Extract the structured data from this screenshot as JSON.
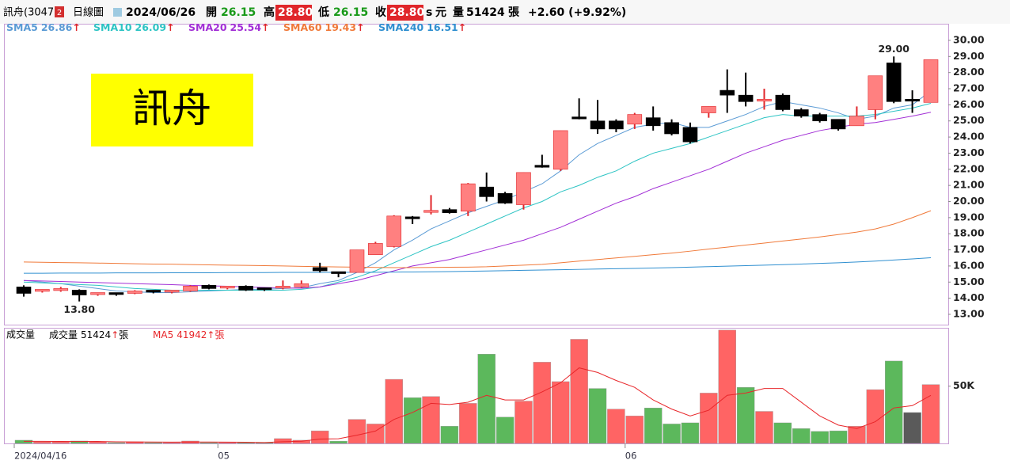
{
  "header": {
    "name": "訊舟(3047)",
    "badge": "2",
    "chart_kind": "日線圖",
    "date": "2024/06/26",
    "open_label": "開",
    "open": "26.15",
    "high_label": "高",
    "high": "28.80",
    "low_label": "低",
    "low": "26.15",
    "close_label": "收",
    "close": "28.80",
    "s": "s",
    "currency": "元",
    "volume_label": "量",
    "volume": "51424",
    "volume_unit": "張",
    "change": "+2.60 (+9.92%)"
  },
  "logo": "訊舟",
  "chart_data": [
    {
      "type": "candlestick",
      "open": [
        14.7,
        14.4,
        14.45,
        14.5,
        14.2,
        14.3,
        14.3,
        14.45,
        14.35,
        14.45,
        14.8,
        14.6,
        14.75,
        14.6,
        14.6,
        14.7,
        15.9,
        15.6,
        15.6,
        16.7,
        17.2,
        19.0,
        19.3,
        19.5,
        19.4,
        20.9,
        20.5,
        19.8,
        22.2,
        22.0,
        25.2,
        25.0,
        25.0,
        24.8,
        25.2,
        24.9,
        24.6,
        25.5,
        26.9,
        26.6,
        26.3,
        26.6,
        25.7,
        25.4,
        25.1,
        24.7,
        25.7,
        28.6,
        26.3,
        26.15
      ],
      "high": [
        14.8,
        14.55,
        14.7,
        14.55,
        14.35,
        14.35,
        14.5,
        14.5,
        14.5,
        14.8,
        14.85,
        14.75,
        14.8,
        14.65,
        15.1,
        15.1,
        16.2,
        15.65,
        17.0,
        17.5,
        19.15,
        19.1,
        20.4,
        19.6,
        21.15,
        21.8,
        20.6,
        21.8,
        22.9,
        24.4,
        26.4,
        26.3,
        25.1,
        25.5,
        25.9,
        25.1,
        24.9,
        25.9,
        28.2,
        28.0,
        27.0,
        26.7,
        25.8,
        25.5,
        25.1,
        25.9,
        27.8,
        29.0,
        26.9,
        28.8
      ],
      "low": [
        14.1,
        14.35,
        14.4,
        13.8,
        14.15,
        14.15,
        14.25,
        14.3,
        14.3,
        14.4,
        14.55,
        14.55,
        14.45,
        14.45,
        14.55,
        14.65,
        15.6,
        15.3,
        15.6,
        16.7,
        17.15,
        18.6,
        19.2,
        19.25,
        19.1,
        20.0,
        19.85,
        19.5,
        22.1,
        21.9,
        25.1,
        24.2,
        24.3,
        24.5,
        24.4,
        24.1,
        23.6,
        25.2,
        25.5,
        25.9,
        25.7,
        25.6,
        25.2,
        24.9,
        24.4,
        24.7,
        25.1,
        26.1,
        25.5,
        26.15
      ],
      "close": [
        14.3,
        14.5,
        14.55,
        14.2,
        14.3,
        14.2,
        14.45,
        14.35,
        14.45,
        14.75,
        14.6,
        14.7,
        14.5,
        14.5,
        14.7,
        14.9,
        15.7,
        15.5,
        17.0,
        17.4,
        19.1,
        18.95,
        19.4,
        19.3,
        21.1,
        20.3,
        19.9,
        21.8,
        22.15,
        24.4,
        25.15,
        24.5,
        24.5,
        25.4,
        24.7,
        24.2,
        23.7,
        25.9,
        26.6,
        26.2,
        26.3,
        25.7,
        25.3,
        25.0,
        24.5,
        25.3,
        27.8,
        26.2,
        26.2,
        28.8
      ],
      "up_color": "#ff8080",
      "up_edge": "#e0262a",
      "down_color": "#000000",
      "lines": [
        {
          "name": "SMA5",
          "color": "#5b9bd5",
          "value_label": "26.86",
          "arrow": "↑",
          "values": [
            15.1,
            15.0,
            14.9,
            14.75,
            14.6,
            14.45,
            14.4,
            14.35,
            14.35,
            14.4,
            14.45,
            14.5,
            14.55,
            14.55,
            14.6,
            14.65,
            14.9,
            15.1,
            15.6,
            16.2,
            17.0,
            17.6,
            18.3,
            18.8,
            19.3,
            19.7,
            20.1,
            20.6,
            21.1,
            21.9,
            22.9,
            23.6,
            24.1,
            24.6,
            24.8,
            24.9,
            24.6,
            24.6,
            25.0,
            25.4,
            25.9,
            26.2,
            26.0,
            25.8,
            25.5,
            25.1,
            25.3,
            25.8,
            26.0,
            26.86
          ]
        },
        {
          "name": "SMA10",
          "color": "#2ec4c4",
          "value_label": "26.09",
          "arrow": "↑",
          "values": [
            15.0,
            14.95,
            14.9,
            14.85,
            14.8,
            14.7,
            14.6,
            14.55,
            14.5,
            14.5,
            14.5,
            14.5,
            14.5,
            14.5,
            14.5,
            14.55,
            14.7,
            15.0,
            15.3,
            15.7,
            16.2,
            16.7,
            17.2,
            17.6,
            18.1,
            18.6,
            19.1,
            19.6,
            20.0,
            20.6,
            21.0,
            21.5,
            21.9,
            22.5,
            23.0,
            23.3,
            23.6,
            24.0,
            24.4,
            24.8,
            25.2,
            25.4,
            25.3,
            25.3,
            25.3,
            25.3,
            25.4,
            25.6,
            25.8,
            26.09
          ]
        },
        {
          "name": "SMA20",
          "color": "#a22fd6",
          "value_label": "25.54",
          "arrow": "↑",
          "values": [
            15.1,
            15.07,
            15.04,
            15.0,
            14.97,
            14.94,
            14.9,
            14.87,
            14.84,
            14.8,
            14.77,
            14.74,
            14.7,
            14.67,
            14.64,
            14.62,
            14.7,
            14.9,
            15.1,
            15.4,
            15.7,
            16.0,
            16.2,
            16.4,
            16.7,
            17.0,
            17.3,
            17.6,
            18.0,
            18.4,
            18.9,
            19.4,
            19.9,
            20.3,
            20.8,
            21.2,
            21.6,
            22.0,
            22.5,
            23.0,
            23.4,
            23.8,
            24.1,
            24.4,
            24.6,
            24.8,
            24.9,
            25.1,
            25.3,
            25.54
          ]
        },
        {
          "name": "SMA60",
          "color": "#f07a3a",
          "value_label": "19.43",
          "arrow": "↑",
          "values": [
            16.25,
            16.23,
            16.21,
            16.2,
            16.18,
            16.16,
            16.14,
            16.12,
            16.11,
            16.09,
            16.07,
            16.05,
            16.04,
            16.02,
            16.0,
            15.98,
            15.96,
            15.94,
            15.93,
            15.91,
            15.9,
            15.9,
            15.91,
            15.92,
            15.93,
            15.95,
            16.0,
            16.05,
            16.1,
            16.2,
            16.3,
            16.4,
            16.5,
            16.6,
            16.7,
            16.8,
            16.92,
            17.05,
            17.17,
            17.3,
            17.42,
            17.55,
            17.67,
            17.8,
            17.95,
            18.1,
            18.3,
            18.6,
            19.0,
            19.43
          ]
        },
        {
          "name": "SMA240",
          "color": "#2f8fd0",
          "value_label": "16.51",
          "arrow": "↑",
          "values": [
            15.55,
            15.55,
            15.56,
            15.56,
            15.56,
            15.57,
            15.57,
            15.57,
            15.58,
            15.58,
            15.58,
            15.59,
            15.59,
            15.59,
            15.6,
            15.6,
            15.6,
            15.61,
            15.61,
            15.61,
            15.62,
            15.63,
            15.64,
            15.65,
            15.67,
            15.69,
            15.71,
            15.73,
            15.75,
            15.77,
            15.79,
            15.81,
            15.83,
            15.85,
            15.87,
            15.9,
            15.93,
            15.96,
            15.99,
            16.02,
            16.05,
            16.08,
            16.12,
            16.16,
            16.2,
            16.25,
            16.3,
            16.37,
            16.44,
            16.51
          ]
        }
      ],
      "annotations": [
        {
          "label": "29.00",
          "value": 29.0
        },
        {
          "label": "13.80",
          "value": 13.8
        }
      ],
      "ylim": [
        12.36,
        31.03
      ],
      "yticks": [
        {
          "value": 13,
          "label": "13.00"
        },
        {
          "value": 14,
          "label": "14.00"
        },
        {
          "value": 15,
          "label": "15.00"
        },
        {
          "value": 16,
          "label": "16.00"
        },
        {
          "value": 17,
          "label": "17.00"
        },
        {
          "value": 18,
          "label": "18.00"
        },
        {
          "value": 19,
          "label": "19.00"
        },
        {
          "value": 20,
          "label": "20.00"
        },
        {
          "value": 21,
          "label": "21.00"
        },
        {
          "value": 22,
          "label": "22.00"
        },
        {
          "value": 23,
          "label": "23.00"
        },
        {
          "value": 24,
          "label": "24.00"
        },
        {
          "value": 25,
          "label": "25.00"
        },
        {
          "value": 26,
          "label": "26.00"
        },
        {
          "value": 27,
          "label": "27.00"
        },
        {
          "value": 28,
          "label": "28.00"
        },
        {
          "value": 29,
          "label": "29.00"
        },
        {
          "value": 30,
          "label": "30.00"
        }
      ]
    },
    {
      "type": "bar",
      "title": "成交量",
      "categories": [
        "2024/04/16",
        null,
        null,
        null,
        null,
        null,
        null,
        null,
        null,
        null,
        null,
        "05",
        null,
        null,
        null,
        null,
        null,
        null,
        null,
        null,
        null,
        null,
        null,
        null,
        null,
        null,
        null,
        null,
        null,
        null,
        null,
        null,
        null,
        "06",
        null,
        null,
        null,
        null,
        null,
        null,
        null,
        null,
        null,
        null,
        null,
        null,
        null,
        null,
        null,
        null
      ],
      "current": {
        "name": "成交量",
        "value_label": "51424",
        "arrow": "↑",
        "unit": "張"
      },
      "values": [
        2800,
        1400,
        1400,
        2100,
        1400,
        700,
        1400,
        700,
        700,
        2100,
        700,
        700,
        700,
        700,
        4200,
        2800,
        11000,
        2000,
        21000,
        17000,
        56000,
        40000,
        41000,
        15000,
        35000,
        78000,
        23000,
        37000,
        71000,
        54000,
        91000,
        48000,
        30000,
        24000,
        31000,
        17000,
        18000,
        44000,
        99000,
        49000,
        28000,
        18000,
        13000,
        10500,
        11000,
        15000,
        47000,
        72000,
        27000,
        51424
      ],
      "colors": [
        "#5cb85c",
        "#ff6464",
        "#ff6464",
        "#5cb85c",
        "#ff6464",
        "#5cb85c",
        "#ff6464",
        "#5cb85c",
        "#ff6464",
        "#ff6464",
        "#5cb85c",
        "#ff6464",
        "#5cb85c",
        "#5cb85c",
        "#ff6464",
        "#ff6464",
        "#ff6464",
        "#5cb85c",
        "#ff6464",
        "#ff6464",
        "#ff6464",
        "#5cb85c",
        "#ff6464",
        "#5cb85c",
        "#ff6464",
        "#5cb85c",
        "#5cb85c",
        "#ff6464",
        "#ff6464",
        "#ff6464",
        "#ff6464",
        "#5cb85c",
        "#ff6464",
        "#ff6464",
        "#5cb85c",
        "#5cb85c",
        "#5cb85c",
        "#ff6464",
        "#ff6464",
        "#5cb85c",
        "#ff6464",
        "#5cb85c",
        "#5cb85c",
        "#5cb85c",
        "#5cb85c",
        "#ff6464",
        "#ff6464",
        "#5cb85c",
        "#5a5a5a",
        "#ff6464"
      ],
      "ma": {
        "name": "MA5",
        "color": "#e8262a",
        "value_label": "41942",
        "arrow": "↑",
        "unit": "張",
        "values": [
          1800,
          1800,
          1700,
          1600,
          1700,
          1400,
          1300,
          1200,
          1100,
          1200,
          1200,
          1100,
          1000,
          800,
          1500,
          1900,
          3800,
          4100,
          7200,
          10800,
          21000,
          27000,
          35000,
          34000,
          36000,
          42000,
          38000,
          38000,
          45000,
          53000,
          66000,
          62000,
          55000,
          49000,
          38000,
          30000,
          24000,
          29000,
          42000,
          44000,
          48000,
          48000,
          36000,
          24000,
          16000,
          13000,
          19000,
          31000,
          33000,
          41942
        ]
      },
      "ylim": [
        0,
        101000
      ],
      "yticks": [
        {
          "value": 50000,
          "label": "50K"
        }
      ]
    }
  ]
}
